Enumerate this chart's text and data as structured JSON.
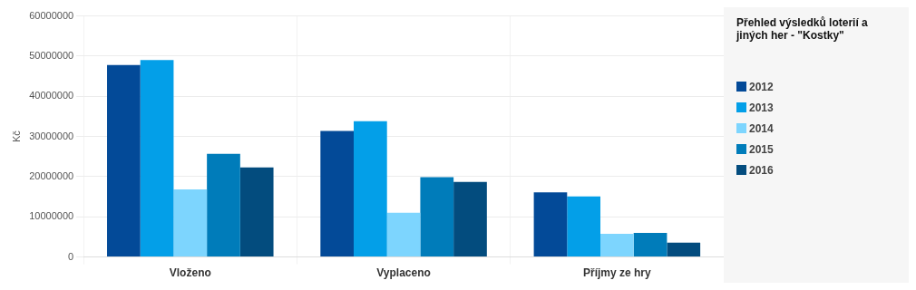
{
  "chart_data": {
    "type": "bar",
    "title": "Přehled výsledků loterií a jiných her - \"Kostky\"",
    "ylabel": "Kč",
    "categories": [
      "Vloženo",
      "Vyplaceno",
      "Příjmy ze hry"
    ],
    "series": [
      {
        "name": "2012",
        "color": "#034a98",
        "values": [
          47800000,
          31400000,
          16100000
        ]
      },
      {
        "name": "2013",
        "color": "#039fe8",
        "values": [
          49000000,
          33800000,
          15100000
        ]
      },
      {
        "name": "2014",
        "color": "#7dd5fe",
        "values": [
          16800000,
          11000000,
          5800000
        ]
      },
      {
        "name": "2015",
        "color": "#007cba",
        "values": [
          25700000,
          19900000,
          6000000
        ]
      },
      {
        "name": "2016",
        "color": "#034c7e",
        "values": [
          22300000,
          18700000,
          3600000
        ]
      }
    ],
    "ylim": [
      0,
      60000000
    ],
    "yticks": [
      0,
      10000000,
      20000000,
      30000000,
      40000000,
      50000000,
      60000000
    ],
    "grid": true,
    "legend": "right"
  }
}
